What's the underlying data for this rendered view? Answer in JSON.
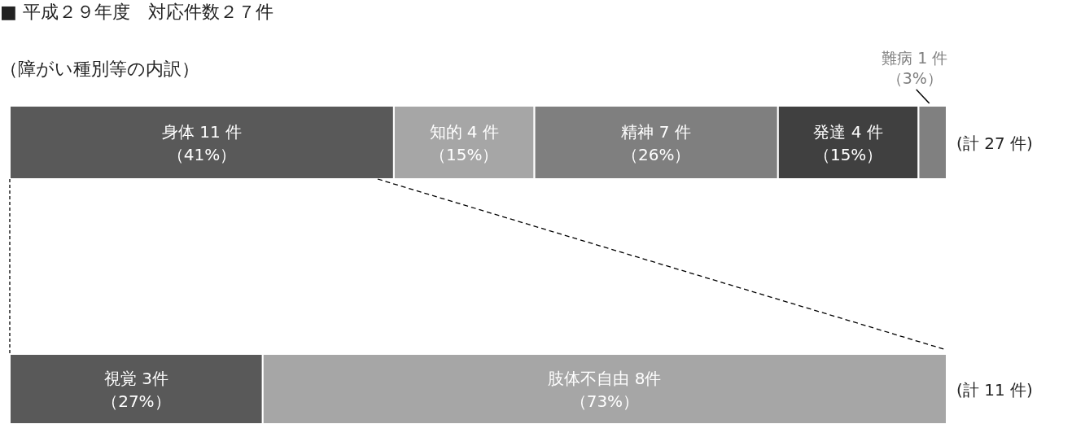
{
  "chart_data": [
    {
      "type": "bar",
      "orientation": "horizontal",
      "stacked": true,
      "tick_labels": false,
      "title": "■ 平成２９年度　対応件数２７件",
      "subtitle": "（障がい種別等の内訳）",
      "categories": [
        null
      ],
      "annotations": [
        "(計 27 件)"
      ],
      "series": [
        {
          "name": "身体 11 件",
          "color": "#595959",
          "values": [
            41
          ],
          "value_labels": [
            "（41%）"
          ]
        },
        {
          "name": "知的 4 件",
          "color": "#a6a6a6",
          "values": [
            15
          ],
          "value_labels": [
            "（15%）"
          ]
        },
        {
          "name": "精神 7 件",
          "color": "#7f7f7f",
          "values": [
            26
          ],
          "value_labels": [
            "（26%）"
          ]
        },
        {
          "name": "発達 4 件",
          "color": "#404040",
          "values": [
            15
          ],
          "value_labels": [
            "（15%）"
          ]
        },
        {
          "name": "難病 1 件",
          "color": "#808080",
          "values": [
            3
          ],
          "value_labels": [
            "（3%）"
          ]
        }
      ]
    },
    {
      "type": "bar",
      "orientation": "horizontal",
      "stacked": true,
      "tick_labels": false,
      "categories": [
        null
      ],
      "annotations": [
        "(計 11 件)"
      ],
      "series": [
        {
          "name": "視覚 3件",
          "color": "#595959",
          "values": [
            27
          ],
          "value_labels": [
            "（27%）"
          ]
        },
        {
          "name": "肢体不自由 8件",
          "color": "#a6a6a6",
          "values": [
            73
          ],
          "value_labels": [
            "（73%）"
          ]
        }
      ]
    }
  ]
}
